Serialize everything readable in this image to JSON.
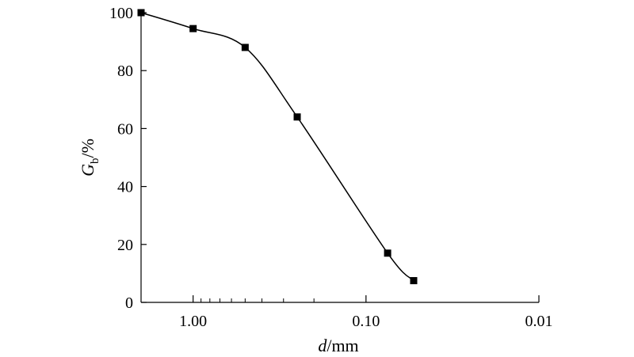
{
  "chart_data": {
    "type": "line",
    "xlabel": {
      "symbol": "d",
      "unit": "/mm"
    },
    "ylabel": {
      "symbol": "G",
      "subscript": "b",
      "unit": "/%"
    },
    "x_scale": "log",
    "x_reversed": true,
    "xlim": [
      2.0,
      0.01
    ],
    "ylim": [
      0,
      100
    ],
    "x_ticks": [
      {
        "value": 1.0,
        "label": "1.00"
      },
      {
        "value": 0.1,
        "label": "0.10"
      },
      {
        "value": 0.01,
        "label": "0.01"
      }
    ],
    "y_ticks": [
      {
        "value": 0,
        "label": "0"
      },
      {
        "value": 20,
        "label": "20"
      },
      {
        "value": 40,
        "label": "40"
      },
      {
        "value": 60,
        "label": "60"
      },
      {
        "value": 80,
        "label": "80"
      },
      {
        "value": 100,
        "label": "100"
      }
    ],
    "grid": false,
    "series": [
      {
        "marker": "square",
        "color": "#000000",
        "points": [
          {
            "x": 2.0,
            "y": 100
          },
          {
            "x": 1.0,
            "y": 94.5
          },
          {
            "x": 0.5,
            "y": 88
          },
          {
            "x": 0.25,
            "y": 64
          },
          {
            "x": 0.075,
            "y": 17
          },
          {
            "x": 0.053,
            "y": 7.5
          }
        ]
      }
    ]
  }
}
